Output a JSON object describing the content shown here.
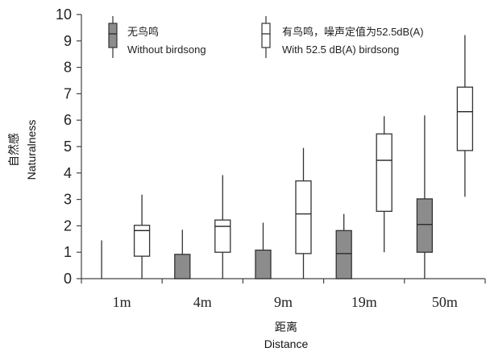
{
  "chart_data": {
    "type": "boxplot",
    "categories": [
      "1m",
      "4m",
      "9m",
      "19m",
      "50m"
    ],
    "ylabel": [
      "自然感",
      "Naturalness"
    ],
    "xlabel": [
      "距离",
      "Distance"
    ],
    "ylim": [
      0,
      10
    ],
    "yticks": [
      0,
      1,
      2,
      3,
      4,
      5,
      6,
      7,
      8,
      9,
      10
    ],
    "series": [
      {
        "name_cn": "无鸟鸣",
        "name_en": "Without birdsong",
        "color": "#8c8c8c",
        "boxes": [
          {
            "min": 0,
            "q1": 0,
            "median": 0,
            "q3": 0,
            "max": 1.45
          },
          {
            "min": 0,
            "q1": 0,
            "median": 0,
            "q3": 0.92,
            "max": 1.85
          },
          {
            "min": 0,
            "q1": 0,
            "median": 0,
            "q3": 1.08,
            "max": 2.12
          },
          {
            "min": 0,
            "q1": 0,
            "median": 0.95,
            "q3": 1.82,
            "max": 2.45
          },
          {
            "min": 0,
            "q1": 1.0,
            "median": 2.05,
            "q3": 3.02,
            "max": 6.18
          }
        ]
      },
      {
        "name_cn": "有鸟鸣，噪声定值为52.5dB(A)",
        "name_en": "With 52.5 dB(A) birdsong",
        "color": "#ffffff",
        "boxes": [
          {
            "min": 0,
            "q1": 0.85,
            "median": 1.82,
            "q3": 2.02,
            "max": 3.18
          },
          {
            "min": 0,
            "q1": 1.0,
            "median": 1.98,
            "q3": 2.22,
            "max": 3.92
          },
          {
            "min": 0,
            "q1": 0.95,
            "median": 2.45,
            "q3": 3.7,
            "max": 4.95
          },
          {
            "min": 1.0,
            "q1": 2.55,
            "median": 4.48,
            "q3": 5.48,
            "max": 6.15
          },
          {
            "min": 3.1,
            "q1": 4.85,
            "median": 6.32,
            "q3": 7.25,
            "max": 9.22
          }
        ]
      }
    ]
  }
}
